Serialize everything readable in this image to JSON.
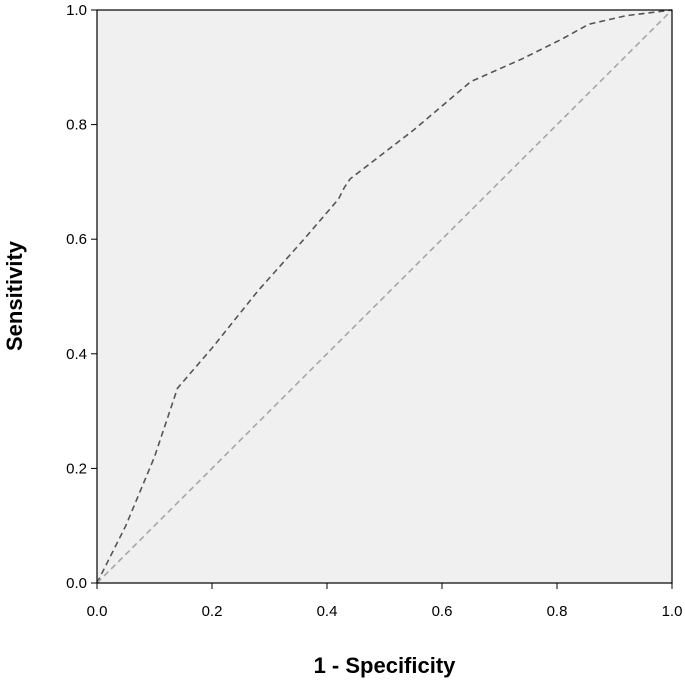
{
  "chart_data": {
    "type": "line",
    "title": "",
    "xlabel": "1 - Specificity",
    "ylabel": "Sensitivity",
    "xlim": [
      0,
      1
    ],
    "ylim": [
      0,
      1
    ],
    "x_ticks": [
      "0.0",
      "0.2",
      "0.4",
      "0.6",
      "0.8",
      "1.0"
    ],
    "y_ticks": [
      "0.0",
      "0.2",
      "0.4",
      "0.6",
      "0.8",
      "1.0"
    ],
    "grid": false,
    "legend": "none",
    "background_color": "#f0f0f0",
    "series": [
      {
        "line_style": "dashed",
        "color": "#555555",
        "points": [
          [
            0.0,
            0.0
          ],
          [
            0.05,
            0.1
          ],
          [
            0.1,
            0.22
          ],
          [
            0.14,
            0.34
          ],
          [
            0.2,
            0.41
          ],
          [
            0.28,
            0.51
          ],
          [
            0.36,
            0.6
          ],
          [
            0.42,
            0.67
          ],
          [
            0.43,
            0.69
          ],
          [
            0.44,
            0.705
          ],
          [
            0.55,
            0.79
          ],
          [
            0.65,
            0.875
          ],
          [
            0.74,
            0.915
          ],
          [
            0.81,
            0.95
          ],
          [
            0.855,
            0.975
          ],
          [
            0.92,
            0.99
          ],
          [
            1.0,
            1.0
          ]
        ]
      },
      {
        "line_style": "dashed",
        "color": "#a6a6a6",
        "points": [
          [
            0.0,
            0.0
          ],
          [
            1.0,
            1.0
          ]
        ]
      }
    ]
  }
}
